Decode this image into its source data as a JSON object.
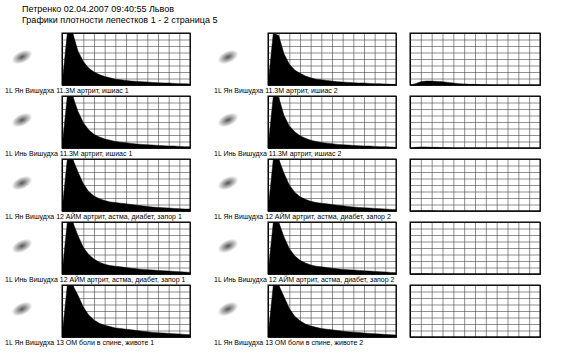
{
  "header": {
    "title": "Петренко 02.04.2007 09:40:55 Львов",
    "subtitle": "Графики плотности лепестков 1 - 2 страница 5"
  },
  "chart_data": [
    {
      "type": "area",
      "title": "1L Ян Вишудха 11.3М артрит, ишиас 1",
      "x": [
        0,
        0.5,
        1,
        1.5,
        2,
        2.5,
        3,
        3.5,
        4,
        4.5,
        5,
        5.5,
        6,
        6.5,
        7,
        7.5,
        8,
        8.5,
        9,
        9.5,
        10,
        10.5,
        11,
        11.5,
        12
      ],
      "values": [
        0,
        8,
        8,
        5.2,
        3.6,
        2.6,
        2.0,
        1.6,
        1.3,
        1.1,
        0.9,
        0.8,
        0.7,
        0.6,
        0.55,
        0.5,
        0.45,
        0.4,
        0.35,
        0.3,
        0.3,
        0.25,
        0.2,
        0.2,
        0.15
      ],
      "color": "#000000",
      "xlim": [
        0,
        12
      ],
      "ylim": [
        0,
        8
      ],
      "xticks": [
        0,
        1,
        2,
        3,
        4,
        5,
        6,
        7,
        8,
        9,
        10,
        11,
        12
      ],
      "yticks": [
        0,
        1,
        2,
        3,
        4,
        5,
        6,
        7,
        8
      ],
      "grid": true,
      "tick_labels": false
    },
    {
      "type": "area",
      "title": "1L Ян Вишудха 11.3М артрит, ишиас 2",
      "x": [
        0,
        0.5,
        1,
        1.5,
        2,
        2.5,
        3,
        3.5,
        4,
        4.5,
        5,
        5.5,
        6,
        6.5,
        7,
        7.5,
        8,
        8.5,
        9,
        9.5,
        10,
        10.5,
        11,
        11.5,
        12
      ],
      "values": [
        0,
        8,
        7.6,
        4.8,
        3.2,
        2.3,
        1.8,
        1.4,
        1.1,
        0.9,
        0.8,
        0.7,
        0.6,
        0.5,
        0.45,
        0.4,
        0.35,
        0.3,
        0.3,
        0.25,
        0.2,
        0.2,
        0.15,
        0.1,
        0.1
      ],
      "color": "#000000",
      "xlim": [
        0,
        12
      ],
      "ylim": [
        0,
        8
      ],
      "xticks": [
        0,
        1,
        2,
        3,
        4,
        5,
        6,
        7,
        8,
        9,
        10,
        11,
        12
      ],
      "yticks": [
        0,
        1,
        2,
        3,
        4,
        5,
        6,
        7,
        8
      ],
      "grid": true,
      "tick_labels": false
    },
    {
      "type": "area",
      "x": [
        0,
        0.5,
        1,
        1.5,
        2,
        2.5,
        3,
        3.5,
        4,
        4.5,
        5,
        5.5,
        6,
        6.5,
        7,
        7.5,
        8,
        8.5,
        9,
        9.5,
        10,
        10.5,
        11,
        11.5,
        12
      ],
      "values": [
        0,
        0.2,
        0.5,
        0.6,
        0.6,
        0.55,
        0.5,
        0.4,
        0.3,
        0.2,
        0.15,
        0.1,
        0.1,
        0.05,
        0.05,
        0,
        0,
        0,
        0,
        0,
        0,
        0,
        0,
        0,
        0
      ],
      "color": "#000000",
      "xlim": [
        0,
        12
      ],
      "ylim": [
        0,
        8
      ],
      "xticks": [
        0,
        1,
        2,
        3,
        4,
        5,
        6,
        7,
        8,
        9,
        10,
        11,
        12
      ],
      "yticks": [
        0,
        1,
        2,
        3,
        4,
        5,
        6,
        7,
        8
      ],
      "grid": true,
      "tick_labels": false
    },
    {
      "type": "area",
      "title": "1L Инь Вишудха 11.3М артрит, ишиас 1",
      "x": [
        0,
        0.5,
        1,
        1.5,
        2,
        2.5,
        3,
        3.5,
        4,
        4.5,
        5,
        5.5,
        6,
        6.5,
        7,
        7.5,
        8,
        8.5,
        9,
        9.5,
        10,
        10.5,
        11,
        11.5,
        12
      ],
      "values": [
        0,
        8,
        8,
        5.6,
        3.9,
        2.8,
        2.1,
        1.7,
        1.4,
        1.2,
        1.0,
        0.9,
        0.8,
        0.7,
        0.6,
        0.55,
        0.5,
        0.45,
        0.4,
        0.35,
        0.3,
        0.3,
        0.25,
        0.2,
        0.2
      ],
      "color": "#000000",
      "xlim": [
        0,
        12
      ],
      "ylim": [
        0,
        8
      ],
      "xticks": [
        0,
        1,
        2,
        3,
        4,
        5,
        6,
        7,
        8,
        9,
        10,
        11,
        12
      ],
      "yticks": [
        0,
        1,
        2,
        3,
        4,
        5,
        6,
        7,
        8
      ],
      "grid": true,
      "tick_labels": false
    },
    {
      "type": "area",
      "title": "1L Инь Вишудха 11.3М артрит, ишиас 2",
      "x": [
        0,
        0.5,
        1,
        1.5,
        2,
        2.5,
        3,
        3.5,
        4,
        4.5,
        5,
        5.5,
        6,
        6.5,
        7,
        7.5,
        8,
        8.5,
        9,
        9.5,
        10,
        10.5,
        11,
        11.5,
        12
      ],
      "values": [
        0,
        8,
        7.8,
        5.0,
        3.4,
        2.5,
        1.9,
        1.5,
        1.2,
        1.0,
        0.85,
        0.75,
        0.65,
        0.55,
        0.5,
        0.45,
        0.4,
        0.35,
        0.3,
        0.3,
        0.25,
        0.2,
        0.2,
        0.15,
        0.1
      ],
      "color": "#000000",
      "xlim": [
        0,
        12
      ],
      "ylim": [
        0,
        8
      ],
      "xticks": [
        0,
        1,
        2,
        3,
        4,
        5,
        6,
        7,
        8,
        9,
        10,
        11,
        12
      ],
      "yticks": [
        0,
        1,
        2,
        3,
        4,
        5,
        6,
        7,
        8
      ],
      "grid": true,
      "tick_labels": false
    },
    {
      "type": "area",
      "x": [
        0,
        0.5,
        1,
        1.5,
        2,
        2.5,
        3,
        3.5,
        4,
        4.5,
        5,
        5.5,
        6,
        6.5,
        7,
        7.5,
        8,
        8.5,
        9,
        9.5,
        10,
        10.5,
        11,
        11.5,
        12
      ],
      "values": [
        0,
        0.1,
        0.15,
        0.15,
        0.1,
        0.1,
        0.05,
        0.05,
        0,
        0,
        0,
        0,
        0,
        0,
        0,
        0,
        0,
        0,
        0,
        0,
        0,
        0,
        0,
        0,
        0
      ],
      "color": "#000000",
      "xlim": [
        0,
        12
      ],
      "ylim": [
        0,
        8
      ],
      "xticks": [
        0,
        1,
        2,
        3,
        4,
        5,
        6,
        7,
        8,
        9,
        10,
        11,
        12
      ],
      "yticks": [
        0,
        1,
        2,
        3,
        4,
        5,
        6,
        7,
        8
      ],
      "grid": true,
      "tick_labels": false
    },
    {
      "type": "area",
      "title": "1L Ян Вишудха 12 АЙМ артрит, астма, диабет, запор 1",
      "x": [
        0,
        0.5,
        1,
        1.5,
        2,
        2.5,
        3,
        3.5,
        4,
        4.5,
        5,
        5.5,
        6,
        6.5,
        7,
        7.5,
        8,
        8.5,
        9,
        9.5,
        10,
        10.5,
        11,
        11.5,
        12
      ],
      "values": [
        0,
        8,
        8,
        6.0,
        4.2,
        3.0,
        2.3,
        1.9,
        1.6,
        1.4,
        1.3,
        1.2,
        1.1,
        1.0,
        0.9,
        0.8,
        0.7,
        0.6,
        0.55,
        0.5,
        0.45,
        0.4,
        0.35,
        0.3,
        0.3
      ],
      "color": "#000000",
      "xlim": [
        0,
        12
      ],
      "ylim": [
        0,
        8
      ],
      "xticks": [
        0,
        1,
        2,
        3,
        4,
        5,
        6,
        7,
        8,
        9,
        10,
        11,
        12
      ],
      "yticks": [
        0,
        1,
        2,
        3,
        4,
        5,
        6,
        7,
        8
      ],
      "grid": true,
      "tick_labels": false
    },
    {
      "type": "area",
      "title": "1L Ян Вишудха 12 АЙМ артрит, астма, диабет, запор 2",
      "x": [
        0,
        0.5,
        1,
        1.5,
        2,
        2.5,
        3,
        3.5,
        4,
        4.5,
        5,
        5.5,
        6,
        6.5,
        7,
        7.5,
        8,
        8.5,
        9,
        9.5,
        10,
        10.5,
        11,
        11.5,
        12
      ],
      "values": [
        0,
        8,
        8,
        5.8,
        4.0,
        2.9,
        2.2,
        1.8,
        1.5,
        1.3,
        1.2,
        1.1,
        1.0,
        0.9,
        0.8,
        0.7,
        0.6,
        0.55,
        0.5,
        0.45,
        0.4,
        0.35,
        0.3,
        0.25,
        0.2
      ],
      "color": "#000000",
      "xlim": [
        0,
        12
      ],
      "ylim": [
        0,
        8
      ],
      "xticks": [
        0,
        1,
        2,
        3,
        4,
        5,
        6,
        7,
        8,
        9,
        10,
        11,
        12
      ],
      "yticks": [
        0,
        1,
        2,
        3,
        4,
        5,
        6,
        7,
        8
      ],
      "grid": true,
      "tick_labels": false
    },
    {
      "type": "area",
      "x": [
        0,
        0.5,
        1,
        1.5,
        2,
        2.5,
        3,
        3.5,
        4,
        4.5,
        5,
        5.5,
        6,
        6.5,
        7,
        7.5,
        8,
        8.5,
        9,
        9.5,
        10,
        10.5,
        11,
        11.5,
        12
      ],
      "values": [
        0,
        0.05,
        0.05,
        0.05,
        0.05,
        0,
        0,
        0,
        0,
        0,
        0,
        0,
        0,
        0,
        0,
        0,
        0,
        0,
        0,
        0,
        0,
        0,
        0,
        0,
        0
      ],
      "color": "#000000",
      "xlim": [
        0,
        12
      ],
      "ylim": [
        0,
        8
      ],
      "xticks": [
        0,
        1,
        2,
        3,
        4,
        5,
        6,
        7,
        8,
        9,
        10,
        11,
        12
      ],
      "yticks": [
        0,
        1,
        2,
        3,
        4,
        5,
        6,
        7,
        8
      ],
      "grid": true,
      "tick_labels": false
    },
    {
      "type": "area",
      "title": "1L Инь Вишудха 12 АЙМ артрит, астма, диабет, запор 1",
      "x": [
        0,
        0.5,
        1,
        1.5,
        2,
        2.5,
        3,
        3.5,
        4,
        4.5,
        5,
        5.5,
        6,
        6.5,
        7,
        7.5,
        8,
        8.5,
        9,
        9.5,
        10,
        10.5,
        11,
        11.5,
        12
      ],
      "values": [
        0,
        8,
        8,
        5.9,
        4.1,
        3.0,
        2.3,
        1.8,
        1.5,
        1.3,
        1.2,
        1.1,
        1.0,
        0.9,
        0.8,
        0.7,
        0.65,
        0.6,
        0.55,
        0.5,
        0.45,
        0.4,
        0.35,
        0.3,
        0.25
      ],
      "color": "#000000",
      "xlim": [
        0,
        12
      ],
      "ylim": [
        0,
        8
      ],
      "xticks": [
        0,
        1,
        2,
        3,
        4,
        5,
        6,
        7,
        8,
        9,
        10,
        11,
        12
      ],
      "yticks": [
        0,
        1,
        2,
        3,
        4,
        5,
        6,
        7,
        8
      ],
      "grid": true,
      "tick_labels": false
    },
    {
      "type": "area",
      "title": "1L Инь Вишудха 12 АЙМ артрит, астма, диабет, запор 2",
      "x": [
        0,
        0.5,
        1,
        1.5,
        2,
        2.5,
        3,
        3.5,
        4,
        4.5,
        5,
        5.5,
        6,
        6.5,
        7,
        7.5,
        8,
        8.5,
        9,
        9.5,
        10,
        10.5,
        11,
        11.5,
        12
      ],
      "values": [
        0,
        8,
        8,
        5.7,
        3.9,
        2.8,
        2.1,
        1.7,
        1.4,
        1.2,
        1.1,
        1.0,
        0.9,
        0.8,
        0.7,
        0.65,
        0.6,
        0.55,
        0.5,
        0.45,
        0.4,
        0.35,
        0.3,
        0.25,
        0.2
      ],
      "color": "#000000",
      "xlim": [
        0,
        12
      ],
      "ylim": [
        0,
        8
      ],
      "xticks": [
        0,
        1,
        2,
        3,
        4,
        5,
        6,
        7,
        8,
        9,
        10,
        11,
        12
      ],
      "yticks": [
        0,
        1,
        2,
        3,
        4,
        5,
        6,
        7,
        8
      ],
      "grid": true,
      "tick_labels": false
    },
    {
      "type": "area",
      "x": [
        0,
        0.5,
        1,
        1.5,
        2,
        2.5,
        3,
        3.5,
        4,
        4.5,
        5,
        5.5,
        6,
        6.5,
        7,
        7.5,
        8,
        8.5,
        9,
        9.5,
        10,
        10.5,
        11,
        11.5,
        12
      ],
      "values": [
        0,
        0.05,
        0.05,
        0.05,
        0,
        0,
        0,
        0,
        0,
        0,
        0,
        0,
        0,
        0,
        0,
        0,
        0,
        0,
        0,
        0,
        0,
        0,
        0,
        0,
        0
      ],
      "color": "#000000",
      "xlim": [
        0,
        12
      ],
      "ylim": [
        0,
        8
      ],
      "xticks": [
        0,
        1,
        2,
        3,
        4,
        5,
        6,
        7,
        8,
        9,
        10,
        11,
        12
      ],
      "yticks": [
        0,
        1,
        2,
        3,
        4,
        5,
        6,
        7,
        8
      ],
      "grid": true,
      "tick_labels": false
    },
    {
      "type": "area",
      "title": "1L Ян Вишудха 13 ОМ боли в спине, животе 1",
      "x": [
        0,
        0.5,
        1,
        1.5,
        2,
        2.5,
        3,
        3.5,
        4,
        4.5,
        5,
        5.5,
        6,
        6.5,
        7,
        7.5,
        8,
        8.5,
        9,
        9.5,
        10,
        10.5,
        11,
        11.5,
        12
      ],
      "values": [
        0,
        8,
        8,
        6.4,
        4.6,
        3.4,
        2.6,
        2.1,
        1.8,
        1.6,
        1.4,
        1.3,
        1.2,
        1.1,
        1.0,
        0.9,
        0.8,
        0.7,
        0.65,
        0.6,
        0.55,
        0.5,
        0.45,
        0.4,
        0.35
      ],
      "color": "#000000",
      "xlim": [
        0,
        12
      ],
      "ylim": [
        0,
        8
      ],
      "xticks": [
        0,
        1,
        2,
        3,
        4,
        5,
        6,
        7,
        8,
        9,
        10,
        11,
        12
      ],
      "yticks": [
        0,
        1,
        2,
        3,
        4,
        5,
        6,
        7,
        8
      ],
      "grid": true,
      "tick_labels": false
    },
    {
      "type": "area",
      "title": "1L Ян Вишудха 13 ОМ боли в спине, животе 2",
      "x": [
        0,
        0.5,
        1,
        1.5,
        2,
        2.5,
        3,
        3.5,
        4,
        4.5,
        5,
        5.5,
        6,
        6.5,
        7,
        7.5,
        8,
        8.5,
        9,
        9.5,
        10,
        10.5,
        11,
        11.5,
        12
      ],
      "values": [
        0,
        8,
        8,
        6.2,
        4.4,
        3.2,
        2.5,
        2.0,
        1.7,
        1.5,
        1.3,
        1.2,
        1.1,
        1.0,
        0.9,
        0.8,
        0.75,
        0.7,
        0.6,
        0.55,
        0.5,
        0.45,
        0.4,
        0.35,
        0.3
      ],
      "color": "#000000",
      "xlim": [
        0,
        12
      ],
      "ylim": [
        0,
        8
      ],
      "xticks": [
        0,
        1,
        2,
        3,
        4,
        5,
        6,
        7,
        8,
        9,
        10,
        11,
        12
      ],
      "yticks": [
        0,
        1,
        2,
        3,
        4,
        5,
        6,
        7,
        8
      ],
      "grid": true,
      "tick_labels": false
    },
    {
      "type": "area",
      "x": [
        0,
        0.5,
        1,
        1.5,
        2,
        2.5,
        3,
        3.5,
        4,
        4.5,
        5,
        5.5,
        6,
        6.5,
        7,
        7.5,
        8,
        8.5,
        9,
        9.5,
        10,
        10.5,
        11,
        11.5,
        12
      ],
      "values": [
        0,
        0,
        0,
        0,
        0,
        0,
        0,
        0,
        0,
        0,
        0,
        0,
        0,
        0,
        0,
        0,
        0,
        0,
        0,
        0,
        0,
        0,
        0,
        0,
        0
      ],
      "color": "#000000",
      "xlim": [
        0,
        12
      ],
      "ylim": [
        0,
        8
      ],
      "xticks": [
        0,
        1,
        2,
        3,
        4,
        5,
        6,
        7,
        8,
        9,
        10,
        11,
        12
      ],
      "yticks": [
        0,
        1,
        2,
        3,
        4,
        5,
        6,
        7,
        8
      ],
      "grid": true,
      "tick_labels": false
    }
  ]
}
